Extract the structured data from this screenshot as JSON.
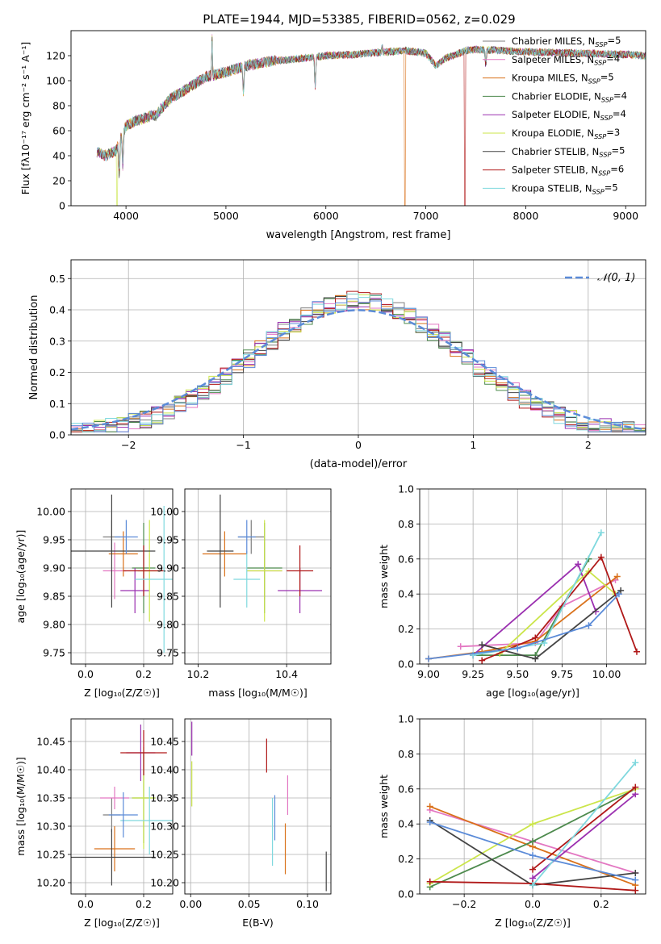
{
  "figure_title": "PLATE=1944, MJD=53385, FIBERID=0562, z=0.029",
  "colors": {
    "Chabrier MILES": "#7f7f7f",
    "Salpeter MILES": "#e377c2",
    "Kroupa MILES": "#d9711a",
    "Chabrier ELODIE": "#4d8a4d",
    "Salpeter ELODIE": "#9b30b0",
    "Kroupa ELODIE": "#cbe54a",
    "Chabrier STELIB": "#444444",
    "Salpeter STELIB": "#b01818",
    "Kroupa STELIB": "#7fd8de",
    "blue": "#5b8bd8",
    "grid": "#b0b0b0"
  },
  "chart_data": [
    {
      "id": "spectrum",
      "type": "line",
      "title": "PLATE=1944, MJD=53385, FIBERID=0562, z=0.029",
      "xlabel": "wavelength [Angstrom, rest frame]",
      "ylabel": "Flux [f_λ 10^-17 erg cm^-2 s^-1 A^-1]",
      "xlim": [
        3450,
        9200
      ],
      "ylim": [
        0,
        140
      ],
      "xticks": [
        4000,
        5000,
        6000,
        7000,
        8000,
        9000
      ],
      "yticks": [
        0,
        20,
        40,
        60,
        80,
        100,
        120
      ],
      "grid": false,
      "legend_position": "right",
      "legend": [
        "Chabrier MILES, N_SSP=5",
        "Salpeter MILES, N_SSP=4",
        "Kroupa MILES, N_SSP=5",
        "Chabrier ELODIE, N_SSP=4",
        "Salpeter ELODIE, N_SSP=4",
        "Kroupa ELODIE, N_SSP=3",
        "Chabrier STELIB, N_SSP=5",
        "Salpeter STELIB, N_SSP=6",
        "Kroupa STELIB, N_SSP=5"
      ],
      "continuum_x": [
        3710,
        3800,
        3900,
        3950,
        4000,
        4100,
        4300,
        4450,
        4600,
        4800,
        5000,
        5200,
        5500,
        5800,
        6000,
        6300,
        6600,
        6800,
        7000,
        7100,
        7200,
        7400,
        7500,
        7800,
        8000,
        8500,
        9000,
        9200
      ],
      "continuum_y": [
        43,
        40,
        44,
        55,
        64,
        68,
        73,
        86,
        93,
        103,
        107,
        112,
        116,
        118,
        120,
        121,
        123,
        124,
        122,
        112,
        118,
        124,
        125,
        124,
        123,
        122,
        121,
        120
      ],
      "emission_lines": [
        [
          4861,
          134
        ],
        [
          6563,
          128
        ]
      ],
      "absorption_lines": [
        [
          3933,
          25
        ],
        [
          3968,
          32
        ],
        [
          4300,
          72
        ],
        [
          5175,
          90
        ],
        [
          5893,
          95
        ],
        [
          7600,
          113
        ]
      ],
      "gaps": [
        {
          "series": "Kroupa MILES",
          "x": 6790
        },
        {
          "series": "Salpeter STELIB",
          "x": 7390
        },
        {
          "series": "Kroupa ELODIE",
          "x": 3910
        }
      ]
    },
    {
      "id": "residuals",
      "type": "histogram",
      "xlabel": "(data-model)/error",
      "ylabel": "Normed distribution",
      "xlim": [
        -2.5,
        2.5
      ],
      "ylim": [
        0,
        0.56
      ],
      "xticks": [
        -2,
        -1,
        0,
        1,
        2
      ],
      "yticks": [
        0.0,
        0.1,
        0.2,
        0.3,
        0.4,
        0.5
      ],
      "grid": true,
      "legend_position": "top-right",
      "reference": {
        "name": "N(0,1)",
        "mean": 0,
        "sigma": 1
      },
      "bin_edges_from": -2.5,
      "bin_width": 0.1,
      "bin_count": 50
    },
    {
      "id": "age_vs_Z",
      "type": "scatter",
      "xlabel": "Z [log10(Z/Z_sun)]",
      "ylabel": "age [log10(age/yr)]",
      "xlim": [
        -0.05,
        0.3
      ],
      "ylim": [
        9.73,
        10.04
      ],
      "xticks": [
        0.0,
        0.2
      ],
      "yticks": [
        9.75,
        9.8,
        9.85,
        9.9,
        9.95,
        10.0
      ],
      "grid": true,
      "points": [
        {
          "series": "Chabrier MILES",
          "x": 0.09,
          "y": 9.955,
          "xerr": 0.03,
          "yerr": 0.03
        },
        {
          "series": "Salpeter MILES",
          "x": 0.1,
          "y": 9.895,
          "xerr": 0.04,
          "yerr": 0.05
        },
        {
          "series": "Kroupa MILES",
          "x": 0.13,
          "y": 9.925,
          "xerr": 0.05,
          "yerr": 0.04
        },
        {
          "series": "Chabrier ELODIE",
          "x": 0.2,
          "y": 9.9,
          "xerr": 0.04,
          "yerr": 0.08
        },
        {
          "series": "Salpeter ELODIE",
          "x": 0.17,
          "y": 9.86,
          "xerr": 0.05,
          "yerr": 0.04
        },
        {
          "series": "Kroupa ELODIE",
          "x": 0.22,
          "y": 9.895,
          "xerr": 0.04,
          "yerr": 0.09
        },
        {
          "series": "Chabrier STELIB",
          "x": 0.09,
          "y": 9.93,
          "xerr": 0.15,
          "yerr": 0.1
        },
        {
          "series": "Salpeter STELIB",
          "x": 0.2,
          "y": 9.895,
          "xerr": 0.07,
          "yerr": 0.045
        },
        {
          "series": "Kroupa STELIB",
          "x": 0.27,
          "y": 9.88,
          "xerr": 0.1,
          "yerr": 0.13
        },
        {
          "series": "blue",
          "x": 0.14,
          "y": 9.955,
          "xerr": 0.04,
          "yerr": 0.03
        }
      ]
    },
    {
      "id": "age_vs_mass",
      "type": "scatter",
      "xlabel": "mass [log10(M/M_sun)]",
      "ylabel": "",
      "xlim": [
        10.17,
        10.5
      ],
      "ylim": [
        9.73,
        10.04
      ],
      "xticks": [
        10.2,
        10.4
      ],
      "yticks": [
        9.75,
        9.8,
        9.85,
        9.9,
        9.95,
        10.0
      ],
      "grid": true,
      "points": [
        {
          "series": "Chabrier MILES",
          "x": 10.32,
          "y": 9.955,
          "xerr": 0.03,
          "yerr": 0.03
        },
        {
          "series": "Salpeter MILES",
          "x": 10.35,
          "y": 9.895,
          "xerr": 0.04,
          "yerr": 0.05
        },
        {
          "series": "Kroupa MILES",
          "x": 10.26,
          "y": 9.925,
          "xerr": 0.05,
          "yerr": 0.04
        },
        {
          "series": "Chabrier ELODIE",
          "x": 10.35,
          "y": 9.9,
          "xerr": 0.04,
          "yerr": 0.08
        },
        {
          "series": "Salpeter ELODIE",
          "x": 10.43,
          "y": 9.86,
          "xerr": 0.05,
          "yerr": 0.04
        },
        {
          "series": "Kroupa ELODIE",
          "x": 10.35,
          "y": 9.895,
          "xerr": 0.04,
          "yerr": 0.09
        },
        {
          "series": "Chabrier STELIB",
          "x": 10.25,
          "y": 9.93,
          "xerr": 0.03,
          "yerr": 0.1
        },
        {
          "series": "Salpeter STELIB",
          "x": 10.43,
          "y": 9.895,
          "xerr": 0.03,
          "yerr": 0.045
        },
        {
          "series": "Kroupa STELIB",
          "x": 10.31,
          "y": 9.88,
          "xerr": 0.03,
          "yerr": 0.05
        },
        {
          "series": "blue",
          "x": 10.31,
          "y": 9.955,
          "xerr": 0.02,
          "yerr": 0.03
        }
      ]
    },
    {
      "id": "weight_vs_age",
      "type": "line",
      "xlabel": "age [log10(age/yr)]",
      "ylabel": "mass weight",
      "xlim": [
        8.95,
        10.22
      ],
      "ylim": [
        0,
        1.0
      ],
      "xticks": [
        9.0,
        9.25,
        9.5,
        9.75,
        10.0
      ],
      "yticks": [
        0.0,
        0.2,
        0.4,
        0.6,
        0.8,
        1.0
      ],
      "grid": true,
      "series": [
        {
          "name": "Salpeter MILES",
          "x": [
            9.18,
            9.6,
            9.75,
            10.05
          ],
          "y": [
            0.1,
            0.12,
            0.33,
            0.48
          ]
        },
        {
          "name": "Kroupa MILES",
          "x": [
            9.0,
            9.3,
            9.6,
            10.06
          ],
          "y": [
            0.03,
            0.07,
            0.13,
            0.5
          ]
        },
        {
          "name": "Chabrier ELODIE",
          "x": [
            9.25,
            9.6,
            9.9
          ],
          "y": [
            0.05,
            0.05,
            0.6
          ]
        },
        {
          "name": "Salpeter ELODIE",
          "x": [
            9.25,
            9.84,
            9.94
          ],
          "y": [
            0.05,
            0.57,
            0.3
          ]
        },
        {
          "name": "Kroupa ELODIE",
          "x": [
            9.4,
            9.9,
            10.05
          ],
          "y": [
            0.06,
            0.53,
            0.4
          ]
        },
        {
          "name": "Chabrier STELIB",
          "x": [
            9.3,
            9.6,
            10.08
          ],
          "y": [
            0.11,
            0.03,
            0.42
          ]
        },
        {
          "name": "Salpeter STELIB",
          "x": [
            9.3,
            9.6,
            9.97,
            10.17
          ],
          "y": [
            0.02,
            0.15,
            0.61,
            0.07
          ]
        },
        {
          "name": "Kroupa STELIB",
          "x": [
            9.25,
            9.65,
            9.97
          ],
          "y": [
            0.05,
            0.12,
            0.75
          ]
        },
        {
          "name": "blue",
          "x": [
            9.0,
            9.5,
            9.9,
            10.07
          ],
          "y": [
            0.03,
            0.09,
            0.22,
            0.4
          ]
        }
      ]
    },
    {
      "id": "mass_vs_Z",
      "type": "scatter",
      "xlabel": "Z [log10(Z/Z_sun)]",
      "ylabel": "mass [log10(M/M_sun)]",
      "xlim": [
        -0.05,
        0.3
      ],
      "ylim": [
        10.18,
        10.49
      ],
      "xticks": [
        0.0,
        0.2
      ],
      "yticks": [
        10.2,
        10.25,
        10.3,
        10.35,
        10.4,
        10.45
      ],
      "grid": true,
      "points": [
        {
          "series": "Chabrier MILES",
          "x": 0.09,
          "y": 10.32,
          "xerr": 0.03,
          "yerr": 0.03
        },
        {
          "series": "Salpeter MILES",
          "x": 0.1,
          "y": 10.35,
          "xerr": 0.05,
          "yerr": 0.02
        },
        {
          "series": "Kroupa MILES",
          "x": 0.1,
          "y": 10.26,
          "xerr": 0.07,
          "yerr": 0.04
        },
        {
          "series": "Chabrier ELODIE",
          "x": 0.2,
          "y": 10.35,
          "xerr": 0.04,
          "yerr": 0.08
        },
        {
          "series": "Salpeter ELODIE",
          "x": 0.19,
          "y": 10.43,
          "xerr": 0.05,
          "yerr": 0.05
        },
        {
          "series": "Kroupa ELODIE",
          "x": 0.2,
          "y": 10.35,
          "xerr": 0.04,
          "yerr": 0.09
        },
        {
          "series": "Chabrier STELIB",
          "x": 0.09,
          "y": 10.245,
          "xerr": 0.15,
          "yerr": 0.05
        },
        {
          "series": "Salpeter STELIB",
          "x": 0.2,
          "y": 10.43,
          "xerr": 0.08,
          "yerr": 0.04
        },
        {
          "series": "Kroupa STELIB",
          "x": 0.22,
          "y": 10.31,
          "xerr": 0.1,
          "yerr": 0.06
        },
        {
          "series": "blue",
          "x": 0.13,
          "y": 10.32,
          "xerr": 0.05,
          "yerr": 0.04
        }
      ]
    },
    {
      "id": "mass_vs_ebv",
      "type": "scatter",
      "xlabel": "E(B-V)",
      "ylabel": "",
      "xlim": [
        -0.005,
        0.12
      ],
      "ylim": [
        10.18,
        10.49
      ],
      "xticks": [
        0.0,
        0.05,
        0.1
      ],
      "yticks": [
        10.2,
        10.25,
        10.3,
        10.35,
        10.4,
        10.45
      ],
      "grid": true,
      "points": [
        {
          "series": "Salpeter ELODIE",
          "x": 0.001,
          "y": 10.455,
          "xerr": 0.0,
          "yerr": 0.03
        },
        {
          "series": "Kroupa ELODIE",
          "x": 0.001,
          "y": 10.375,
          "xerr": 0.0,
          "yerr": 0.04
        },
        {
          "series": "Salpeter STELIB",
          "x": 0.065,
          "y": 10.425,
          "xerr": 0.0,
          "yerr": 0.03
        },
        {
          "series": "Salpeter MILES",
          "x": 0.083,
          "y": 10.355,
          "xerr": 0.0,
          "yerr": 0.035
        },
        {
          "series": "blue",
          "x": 0.072,
          "y": 10.315,
          "xerr": 0.0,
          "yerr": 0.04
        },
        {
          "series": "Kroupa STELIB",
          "x": 0.07,
          "y": 10.29,
          "xerr": 0.0,
          "yerr": 0.06
        },
        {
          "series": "Kroupa MILES",
          "x": 0.081,
          "y": 10.26,
          "xerr": 0.0,
          "yerr": 0.045
        },
        {
          "series": "Chabrier STELIB",
          "x": 0.116,
          "y": 10.22,
          "xerr": 0.0,
          "yerr": 0.035
        }
      ]
    },
    {
      "id": "weight_vs_Z",
      "type": "line",
      "xlabel": "Z [log10(Z/Z_sun)]",
      "ylabel": "mass weight",
      "xlim": [
        -0.33,
        0.33
      ],
      "ylim": [
        0,
        1.0
      ],
      "xticks": [
        -0.2,
        0.0,
        0.2
      ],
      "yticks": [
        0.0,
        0.2,
        0.4,
        0.6,
        0.8,
        1.0
      ],
      "grid": true,
      "series": [
        {
          "name": "Salpeter MILES",
          "x": [
            -0.3,
            0.0,
            0.3
          ],
          "y": [
            0.48,
            0.3,
            0.12
          ]
        },
        {
          "name": "Kroupa MILES",
          "x": [
            -0.3,
            0.0,
            0.3
          ],
          "y": [
            0.5,
            0.27,
            0.05
          ]
        },
        {
          "name": "Chabrier ELODIE",
          "x": [
            -0.3,
            0.0,
            0.3
          ],
          "y": [
            0.04,
            0.3,
            0.6
          ]
        },
        {
          "name": "Salpeter ELODIE",
          "x": [
            0.0,
            0.3
          ],
          "y": [
            0.09,
            0.57
          ]
        },
        {
          "name": "Kroupa ELODIE",
          "x": [
            -0.3,
            0.0,
            0.3
          ],
          "y": [
            0.06,
            0.4,
            0.6
          ]
        },
        {
          "name": "Chabrier STELIB",
          "x": [
            -0.3,
            0.0,
            0.3
          ],
          "y": [
            0.42,
            0.05,
            0.12
          ]
        },
        {
          "name": "Salpeter STELIB",
          "x": [
            -0.3,
            0.0,
            0.3
          ],
          "y": [
            0.07,
            0.06,
            0.02
          ]
        },
        {
          "name": "Salpeter STELIB",
          "x": [
            0.0,
            0.3
          ],
          "y": [
            0.14,
            0.61
          ]
        },
        {
          "name": "Kroupa STELIB",
          "x": [
            0.0,
            0.3
          ],
          "y": [
            0.05,
            0.75
          ]
        },
        {
          "name": "blue",
          "x": [
            -0.3,
            0.0,
            0.3
          ],
          "y": [
            0.41,
            0.22,
            0.08
          ]
        }
      ]
    }
  ]
}
